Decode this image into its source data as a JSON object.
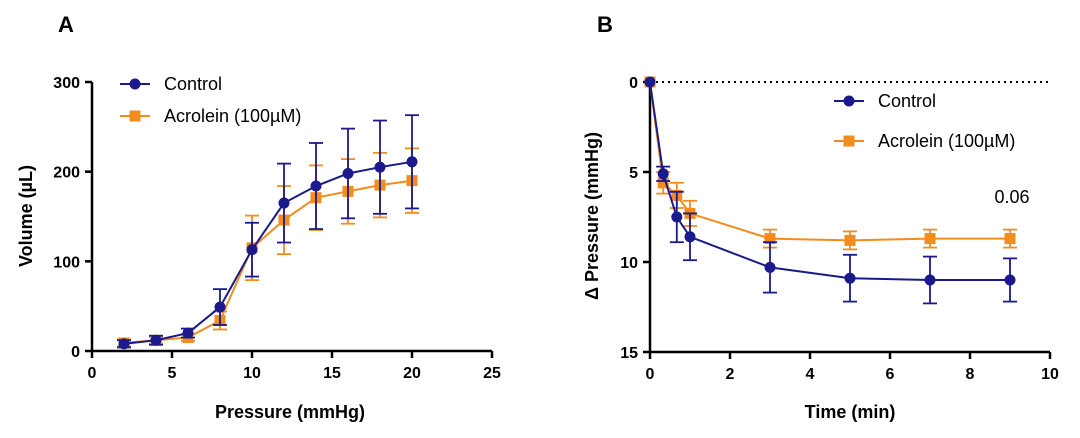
{
  "colors": {
    "control": "#1a1a8c",
    "acrolein": "#f28c1c",
    "axis": "#000000"
  },
  "chart_data": [
    {
      "panel": "A",
      "type": "line",
      "title": "",
      "xlabel": "Pressure (mmHg)",
      "ylabel": "Volume (µL)",
      "xlim": [
        0,
        25
      ],
      "ylim": [
        0,
        300
      ],
      "xticks": [
        0,
        5,
        10,
        15,
        20,
        25
      ],
      "yticks": [
        0,
        100,
        200,
        300
      ],
      "y_inverted": false,
      "legend_position": "top-left",
      "series": [
        {
          "name": "Control",
          "marker": "circle",
          "color_key": "control",
          "x": [
            2,
            4,
            6,
            8,
            10,
            12,
            14,
            16,
            18,
            20
          ],
          "y": [
            8,
            12,
            20,
            49,
            113,
            165,
            184,
            198,
            205,
            211
          ],
          "err": [
            4,
            5,
            5,
            20,
            30,
            44,
            48,
            50,
            52,
            52
          ]
        },
        {
          "name": "Acrolein (100µM)",
          "marker": "square",
          "color_key": "acrolein",
          "x": [
            2,
            4,
            6,
            8,
            10,
            12,
            14,
            16,
            18,
            20
          ],
          "y": [
            9,
            12,
            15,
            34,
            115,
            146,
            171,
            178,
            185,
            190
          ],
          "err": [
            4,
            4,
            4,
            10,
            36,
            38,
            36,
            36,
            36,
            36
          ]
        }
      ]
    },
    {
      "panel": "B",
      "type": "line",
      "title": "",
      "xlabel": "Time (min)",
      "ylabel": "Δ Pressure (mmHg)",
      "xlim": [
        0,
        10
      ],
      "ylim": [
        0,
        15
      ],
      "xticks": [
        0,
        2,
        4,
        6,
        8,
        10
      ],
      "yticks": [
        0,
        5,
        10,
        15
      ],
      "y_inverted": true,
      "zero_line": "dotted",
      "legend_position": "top-right",
      "annotations": [
        {
          "text": "0.06",
          "x": 9,
          "y": 7.4
        }
      ],
      "series": [
        {
          "name": "Control",
          "marker": "circle",
          "color_key": "control",
          "x": [
            0,
            0.33,
            0.67,
            1,
            3,
            5,
            7,
            9
          ],
          "y": [
            0,
            5.1,
            7.5,
            8.6,
            10.3,
            10.9,
            11.0,
            11.0
          ],
          "err": [
            0,
            0.4,
            1.4,
            1.3,
            1.4,
            1.3,
            1.3,
            1.2
          ]
        },
        {
          "name": "Acrolein (100µM)",
          "marker": "square",
          "color_key": "acrolein",
          "x": [
            0,
            0.33,
            0.67,
            1,
            3,
            5,
            7,
            9
          ],
          "y": [
            0,
            5.6,
            6.3,
            7.3,
            8.7,
            8.8,
            8.7,
            8.7
          ],
          "err": [
            0,
            0.6,
            0.7,
            0.7,
            0.5,
            0.5,
            0.5,
            0.5
          ]
        }
      ]
    }
  ]
}
